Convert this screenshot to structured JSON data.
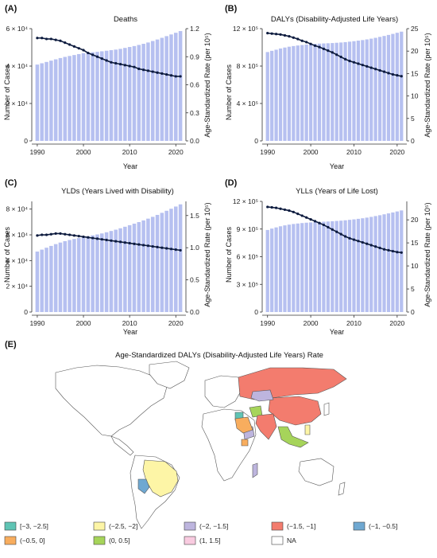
{
  "chart_data": [
    {
      "panel": "(A)",
      "type": "bar+line",
      "title": "Deaths",
      "xlabel": "Year",
      "ylabel_left": "Number of Cases",
      "ylabel_right": "Age-Standardized Rate (per 10⁵)",
      "x": [
        1990,
        1991,
        1992,
        1993,
        1994,
        1995,
        1996,
        1997,
        1998,
        1999,
        2000,
        2001,
        2002,
        2003,
        2004,
        2005,
        2006,
        2007,
        2008,
        2009,
        2010,
        2011,
        2012,
        2013,
        2014,
        2015,
        2016,
        2017,
        2018,
        2019,
        2020,
        2021
      ],
      "x_ticks": [
        "1990",
        "2000",
        "2010",
        "2020"
      ],
      "left_ylim": [
        0,
        60000
      ],
      "left_ticks": [
        0,
        20000,
        40000,
        60000
      ],
      "left_tick_labels": [
        "0",
        "2 × 10⁴",
        "4 × 10⁴",
        "6 × 10⁴"
      ],
      "right_ylim": [
        0,
        1.2
      ],
      "right_ticks": [
        0,
        0.3,
        0.6,
        0.9,
        1.2
      ],
      "right_tick_labels": [
        "0.0",
        "0.3",
        "0.6",
        "0.9",
        "1.2"
      ],
      "bars": [
        40800,
        41500,
        42200,
        42900,
        43600,
        44300,
        44900,
        45400,
        45900,
        46400,
        46900,
        47200,
        47400,
        47600,
        47900,
        48200,
        48500,
        48800,
        49200,
        49700,
        50200,
        50700,
        51300,
        51900,
        52600,
        53400,
        54200,
        55100,
        56000,
        56900,
        57800,
        58700
      ],
      "line": [
        1.1,
        1.1,
        1.09,
        1.09,
        1.08,
        1.07,
        1.05,
        1.03,
        1.01,
        0.99,
        0.97,
        0.94,
        0.92,
        0.9,
        0.88,
        0.86,
        0.84,
        0.83,
        0.82,
        0.81,
        0.8,
        0.79,
        0.77,
        0.76,
        0.75,
        0.74,
        0.73,
        0.72,
        0.71,
        0.7,
        0.69,
        0.69
      ]
    },
    {
      "panel": "(B)",
      "type": "bar+line",
      "title": "DALYs (Disability-Adjusted Life Years)",
      "xlabel": "Year",
      "ylabel_left": "Number of Cases",
      "ylabel_right": "Age-Standardized Rate (per 10⁵)",
      "x": [
        1990,
        1991,
        1992,
        1993,
        1994,
        1995,
        1996,
        1997,
        1998,
        1999,
        2000,
        2001,
        2002,
        2003,
        2004,
        2005,
        2006,
        2007,
        2008,
        2009,
        2010,
        2011,
        2012,
        2013,
        2014,
        2015,
        2016,
        2017,
        2018,
        2019,
        2020,
        2021
      ],
      "x_ticks": [
        "1990",
        "2000",
        "2010",
        "2020"
      ],
      "left_ylim": [
        0,
        1200000
      ],
      "left_ticks": [
        0,
        400000,
        800000,
        1200000
      ],
      "left_tick_labels": [
        "0",
        "4 × 10⁵",
        "8 × 10⁵",
        "12 × 10⁵"
      ],
      "right_ylim": [
        0,
        25
      ],
      "right_ticks": [
        0,
        5,
        10,
        15,
        20,
        25
      ],
      "right_tick_labels": [
        "0",
        "5",
        "10",
        "15",
        "20",
        "25"
      ],
      "bars": [
        950000,
        963000,
        975000,
        988000,
        998000,
        1007000,
        1014000,
        1020000,
        1025000,
        1030000,
        1035000,
        1038000,
        1040000,
        1042000,
        1044000,
        1046000,
        1049000,
        1052000,
        1056000,
        1061000,
        1066000,
        1072000,
        1078000,
        1085000,
        1093000,
        1102000,
        1112000,
        1122000,
        1133000,
        1144000,
        1156000,
        1168000
      ],
      "line": [
        24,
        23.9,
        23.8,
        23.7,
        23.5,
        23.3,
        23,
        22.7,
        22.3,
        22,
        21.6,
        21.2,
        20.9,
        20.5,
        20.1,
        19.7,
        19.2,
        18.7,
        18.2,
        17.8,
        17.5,
        17.2,
        16.9,
        16.6,
        16.3,
        16,
        15.7,
        15.4,
        15.1,
        14.8,
        14.6,
        14.4
      ]
    },
    {
      "panel": "(C)",
      "type": "bar+line",
      "title": "YLDs (Years Lived with Disability)",
      "xlabel": "Year",
      "ylabel_left": "Number of Cases",
      "ylabel_right": "Age-Standardized Rate (per 10⁵)",
      "x": [
        1990,
        1991,
        1992,
        1993,
        1994,
        1995,
        1996,
        1997,
        1998,
        1999,
        2000,
        2001,
        2002,
        2003,
        2004,
        2005,
        2006,
        2007,
        2008,
        2009,
        2010,
        2011,
        2012,
        2013,
        2014,
        2015,
        2016,
        2017,
        2018,
        2019,
        2020,
        2021
      ],
      "x_ticks": [
        "1990",
        "2000",
        "2010",
        "2020"
      ],
      "left_ylim": [
        0,
        86000
      ],
      "left_ticks": [
        0,
        20000,
        40000,
        60000,
        80000
      ],
      "left_tick_labels": [
        "0",
        "2 × 10⁴",
        "4 × 10⁴",
        "6 × 10⁴",
        "8 × 10⁴"
      ],
      "right_ylim": [
        0,
        1.72
      ],
      "right_ticks": [
        0,
        0.5,
        1.0,
        1.5
      ],
      "right_tick_labels": [
        "0.0",
        "0.5",
        "1.0",
        "1.5"
      ],
      "bars": [
        47000,
        48500,
        50000,
        51400,
        52800,
        54000,
        55100,
        56000,
        56800,
        57500,
        58200,
        58900,
        59600,
        60300,
        61100,
        62000,
        63000,
        64000,
        65100,
        66300,
        67500,
        68700,
        69900,
        71200,
        72600,
        74000,
        75500,
        77100,
        78700,
        80300,
        82000,
        83700
      ],
      "line": [
        1.19,
        1.2,
        1.2,
        1.21,
        1.22,
        1.22,
        1.21,
        1.2,
        1.19,
        1.18,
        1.17,
        1.16,
        1.15,
        1.14,
        1.13,
        1.12,
        1.11,
        1.1,
        1.09,
        1.08,
        1.07,
        1.06,
        1.05,
        1.04,
        1.03,
        1.02,
        1.01,
        1.0,
        0.99,
        0.98,
        0.97,
        0.96
      ]
    },
    {
      "panel": "(D)",
      "type": "bar+line",
      "title": "YLLs (Years of Life Lost)",
      "xlabel": "Year",
      "ylabel_left": "Number of Cases",
      "ylabel_right": "Age-Standardized Rate (per 10⁵)",
      "x": [
        1990,
        1991,
        1992,
        1993,
        1994,
        1995,
        1996,
        1997,
        1998,
        1999,
        2000,
        2001,
        2002,
        2003,
        2004,
        2005,
        2006,
        2007,
        2008,
        2009,
        2010,
        2011,
        2012,
        2013,
        2014,
        2015,
        2016,
        2017,
        2018,
        2019,
        2020,
        2021
      ],
      "x_ticks": [
        "1990",
        "2000",
        "2010",
        "2020"
      ],
      "left_ylim": [
        0,
        1200000
      ],
      "left_ticks": [
        0,
        300000,
        600000,
        900000,
        1200000
      ],
      "left_tick_labels": [
        "0",
        "3 × 10⁵",
        "6 × 10⁵",
        "9 × 10⁵",
        "12 × 10⁵"
      ],
      "right_ylim": [
        0,
        24
      ],
      "right_ticks": [
        0,
        5,
        10,
        15,
        20
      ],
      "right_tick_labels": [
        "0",
        "5",
        "10",
        "15",
        "20"
      ],
      "bars": [
        890000,
        905000,
        918000,
        930000,
        940000,
        948000,
        955000,
        960000,
        965000,
        969000,
        972000,
        975000,
        977000,
        980000,
        982000,
        985000,
        988000,
        991000,
        995000,
        1000000,
        1005000,
        1011000,
        1017000,
        1024000,
        1032000,
        1041000,
        1050000,
        1060000,
        1070000,
        1080000,
        1091000,
        1102000
      ],
      "line": [
        22.8,
        22.7,
        22.6,
        22.4,
        22.2,
        22,
        21.7,
        21.3,
        20.9,
        20.5,
        20.1,
        19.7,
        19.3,
        18.9,
        18.4,
        17.9,
        17.4,
        16.9,
        16.4,
        16,
        15.7,
        15.4,
        15.1,
        14.8,
        14.5,
        14.2,
        13.9,
        13.6,
        13.4,
        13.2,
        13,
        12.9
      ]
    }
  ],
  "map": {
    "panel": "(E)",
    "title": "Age-Standardized DALYs (Disability-Adjusted Life Years) Rate",
    "legend": [
      {
        "label": "[−3, −2.5]",
        "color": "#5fc4b4"
      },
      {
        "label": "(−2.5, −2]",
        "color": "#fdf5a6"
      },
      {
        "label": "(−2, −1.5]",
        "color": "#bdb5de"
      },
      {
        "label": "(−1.5, −1]",
        "color": "#f37c6e"
      },
      {
        "label": "(−1, −0.5]",
        "color": "#6fa8d1"
      },
      {
        "label": "(−0.5, 0]",
        "color": "#f8ad5e"
      },
      {
        "label": "(0, 0.5]",
        "color": "#a6d45a"
      },
      {
        "label": "(1, 1.5]",
        "color": "#f9cbe0"
      },
      {
        "label": "NA",
        "color": "#ffffff"
      }
    ]
  },
  "colors": {
    "bar": "#b6c0f0",
    "line": "#0d1b3e",
    "axis": "#333333"
  }
}
